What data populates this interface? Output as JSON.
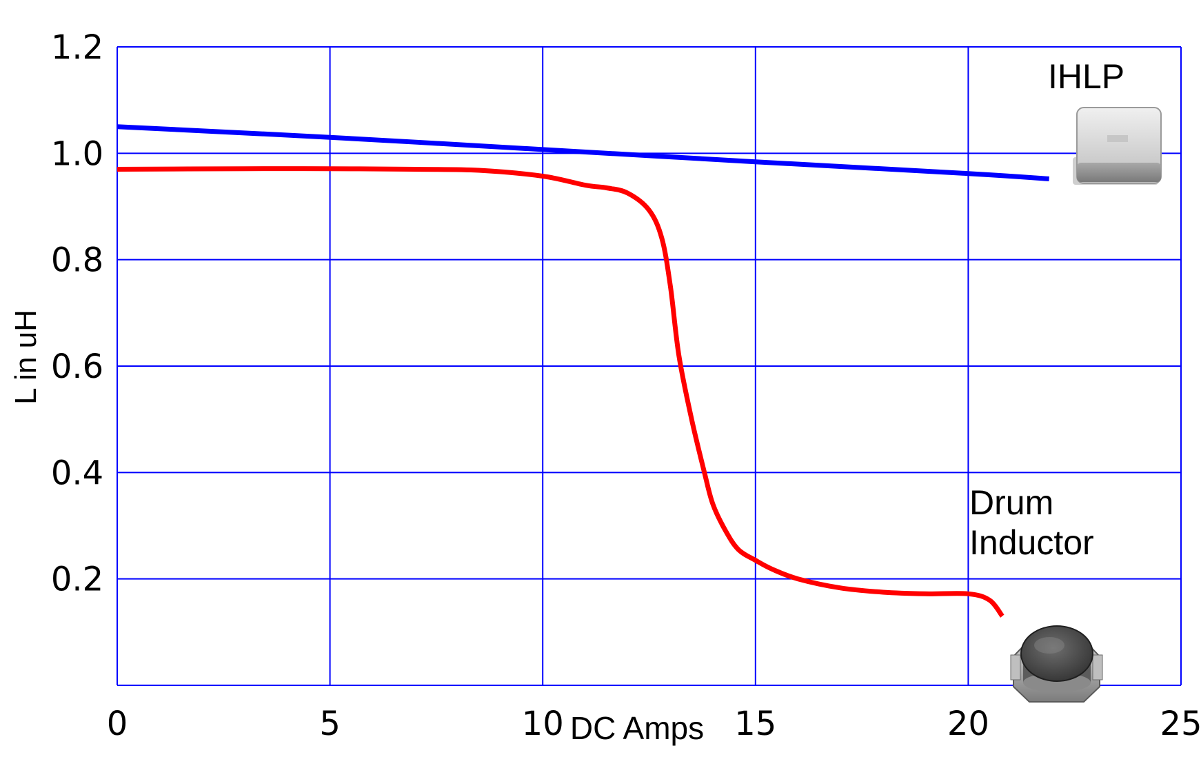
{
  "chart_data": {
    "type": "line",
    "title": "",
    "xlabel": "DC Amps",
    "ylabel": "L in uH",
    "xlim": [
      0,
      25
    ],
    "ylim": [
      0,
      1.2
    ],
    "x_ticks": [
      "0",
      "5",
      "10",
      "15",
      "20",
      "25"
    ],
    "y_ticks": [
      "0.2",
      "0.4",
      "0.6",
      "0.8",
      "1.0",
      "1.2"
    ],
    "grid": true,
    "grid_color": "#0000ff",
    "series": [
      {
        "name": "IHLP",
        "color": "#0000ff",
        "x": [
          0,
          5,
          10,
          15,
          20,
          21.9
        ],
        "y": [
          1.05,
          1.03,
          1.007,
          0.984,
          0.962,
          0.952
        ]
      },
      {
        "name": "Drum Inductor",
        "color": "#ff0000",
        "x": [
          0,
          3,
          5,
          7,
          8.5,
          10,
          11,
          11.5,
          12,
          12.5,
          12.8,
          13,
          13.2,
          13.5,
          13.8,
          14,
          14.3,
          14.6,
          15,
          15.4,
          16,
          17,
          18,
          19,
          20,
          20.5,
          20.8
        ],
        "y": [
          0.97,
          0.971,
          0.971,
          0.97,
          0.968,
          0.957,
          0.94,
          0.935,
          0.925,
          0.893,
          0.84,
          0.75,
          0.62,
          0.5,
          0.4,
          0.34,
          0.29,
          0.255,
          0.235,
          0.218,
          0.2,
          0.183,
          0.175,
          0.172,
          0.172,
          0.16,
          0.13
        ]
      }
    ],
    "annotations": [
      {
        "text": "IHLP",
        "icon": "ihlp-inductor-icon"
      },
      {
        "text": "Drum",
        "icon": "drum-inductor-icon"
      },
      {
        "text": "Inductor"
      }
    ]
  }
}
